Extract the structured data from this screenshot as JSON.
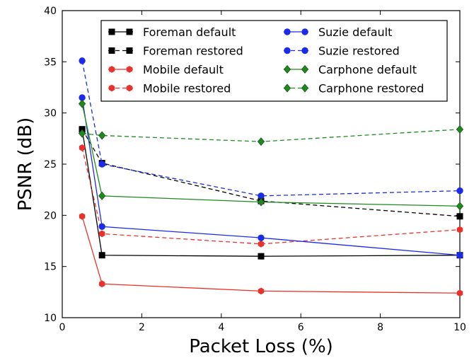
{
  "chart_data": {
    "type": "line",
    "xlabel": "Packet Loss (%)",
    "ylabel": "PSNR (dB)",
    "xlim": [
      0,
      10
    ],
    "ylim": [
      10,
      40
    ],
    "xticks": [
      0,
      2,
      4,
      6,
      8,
      10
    ],
    "yticks": [
      10,
      15,
      20,
      25,
      30,
      35,
      40
    ],
    "grid": false,
    "legend_position": "top-center",
    "legend_columns": 2,
    "x": [
      0.5,
      1,
      5,
      10
    ],
    "series": [
      {
        "name": "Foreman default",
        "color": "#000000",
        "dash": "solid",
        "marker": "square",
        "values": [
          28.4,
          16.1,
          16.0,
          16.1
        ]
      },
      {
        "name": "Foreman restored",
        "color": "#000000",
        "dash": "dashed",
        "marker": "square",
        "values": [
          28.4,
          25.1,
          21.4,
          19.9
        ]
      },
      {
        "name": "Mobile default",
        "color": "#e8322c",
        "dash": "solid",
        "marker": "hexagon",
        "values": [
          19.9,
          13.3,
          12.6,
          12.4
        ]
      },
      {
        "name": "Mobile restored",
        "color": "#e8322c",
        "dash": "dashed",
        "marker": "hexagon",
        "values": [
          26.6,
          18.2,
          17.2,
          18.6
        ]
      },
      {
        "name": "Suzie default",
        "color": "#1a2ce8",
        "dash": "solid",
        "marker": "circle",
        "values": [
          31.5,
          18.9,
          17.8,
          16.1
        ]
      },
      {
        "name": "Suzie restored",
        "color": "#1a2ce8",
        "dash": "dashed",
        "marker": "circle",
        "values": [
          35.1,
          25.0,
          21.9,
          22.4
        ]
      },
      {
        "name": "Carphone default",
        "color": "#1e8a1e",
        "dash": "solid",
        "marker": "diamond",
        "values": [
          30.9,
          21.9,
          21.3,
          20.9
        ]
      },
      {
        "name": "Carphone restored",
        "color": "#1e8a1e",
        "dash": "dashed",
        "marker": "diamond",
        "values": [
          28.0,
          27.8,
          27.2,
          28.4
        ]
      }
    ]
  }
}
